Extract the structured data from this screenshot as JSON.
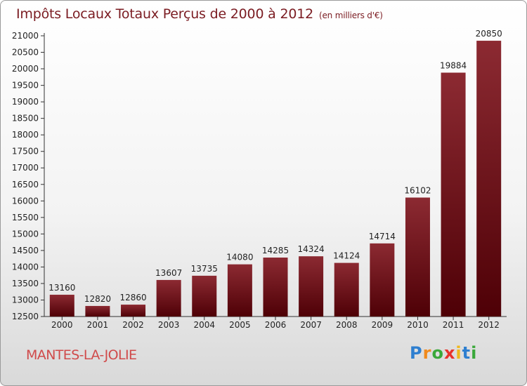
{
  "header": {
    "title": "Impôts Locaux Totaux Perçus de 2000 à 2012",
    "unit": "(en milliers d'€)"
  },
  "footer": {
    "location": "MANTES-LA-JOLIE",
    "brand_letters": [
      "P",
      "r",
      "o",
      "x",
      "i",
      "t",
      "i"
    ],
    "brand_colors": [
      "#2e7fd0",
      "#f08a1c",
      "#3aa83a",
      "#e8322b",
      "#f0b81c",
      "#2e7fd0",
      "#3aa83a"
    ]
  },
  "colors": {
    "bar_top": "#8c2a32",
    "bar_bottom": "#4e0006",
    "title": "#7b1c22",
    "location": "#d04a4a"
  },
  "chart_data": {
    "type": "bar",
    "title": "Impôts Locaux Totaux Perçus de 2000 à 2012",
    "categories": [
      "2000",
      "2001",
      "2002",
      "2003",
      "2004",
      "2005",
      "2006",
      "2007",
      "2008",
      "2009",
      "2010",
      "2011",
      "2012"
    ],
    "values": [
      13160,
      12820,
      12860,
      13607,
      13735,
      14080,
      14285,
      14324,
      14124,
      14714,
      16102,
      19884,
      20850
    ],
    "ylim": [
      12500,
      21000
    ],
    "yticks": [
      12500,
      13000,
      13500,
      14000,
      14500,
      15000,
      15500,
      16000,
      16500,
      17000,
      17500,
      18000,
      18500,
      19000,
      19500,
      20000,
      20500,
      21000
    ],
    "grid": false,
    "legend": "none"
  }
}
